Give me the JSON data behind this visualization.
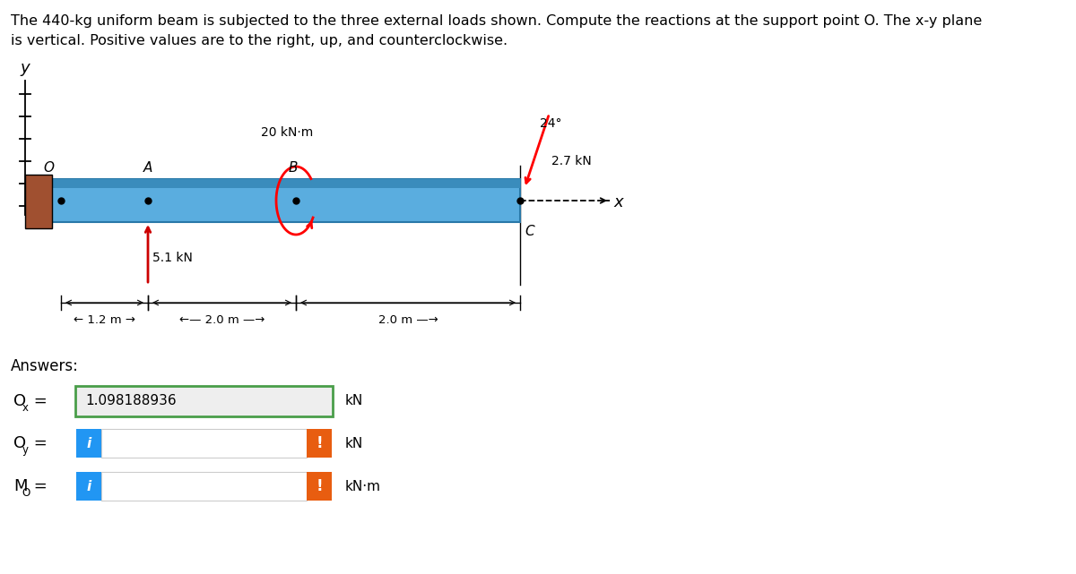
{
  "title_line1": "The 440-kg uniform beam is subjected to the three external loads shown. Compute the reactions at the support point O. The x-y plane",
  "title_line2": "is vertical. Positive values are to the right, up, and counterclockwise.",
  "beam_color": "#5aaddf",
  "beam_top_color": "#3a8cbc",
  "beam_bottom_color": "#4a9fcc",
  "support_color": "#a05030",
  "bg_color": "#ffffff",
  "blue_btn_color": "#2196F3",
  "orange_btn_color": "#e85d10",
  "box_fill": "#eeeeee",
  "box_border_green": "#4a9e4a",
  "ox_value": "1.098188936",
  "kn_unit": "kN",
  "knm_unit": "kN·m",
  "moment_label": "20 kN·m",
  "force_A_label": "5.1 kN",
  "force_C_label": "2.7 kN",
  "angle_label": "24°",
  "answers_title": "Answers:"
}
